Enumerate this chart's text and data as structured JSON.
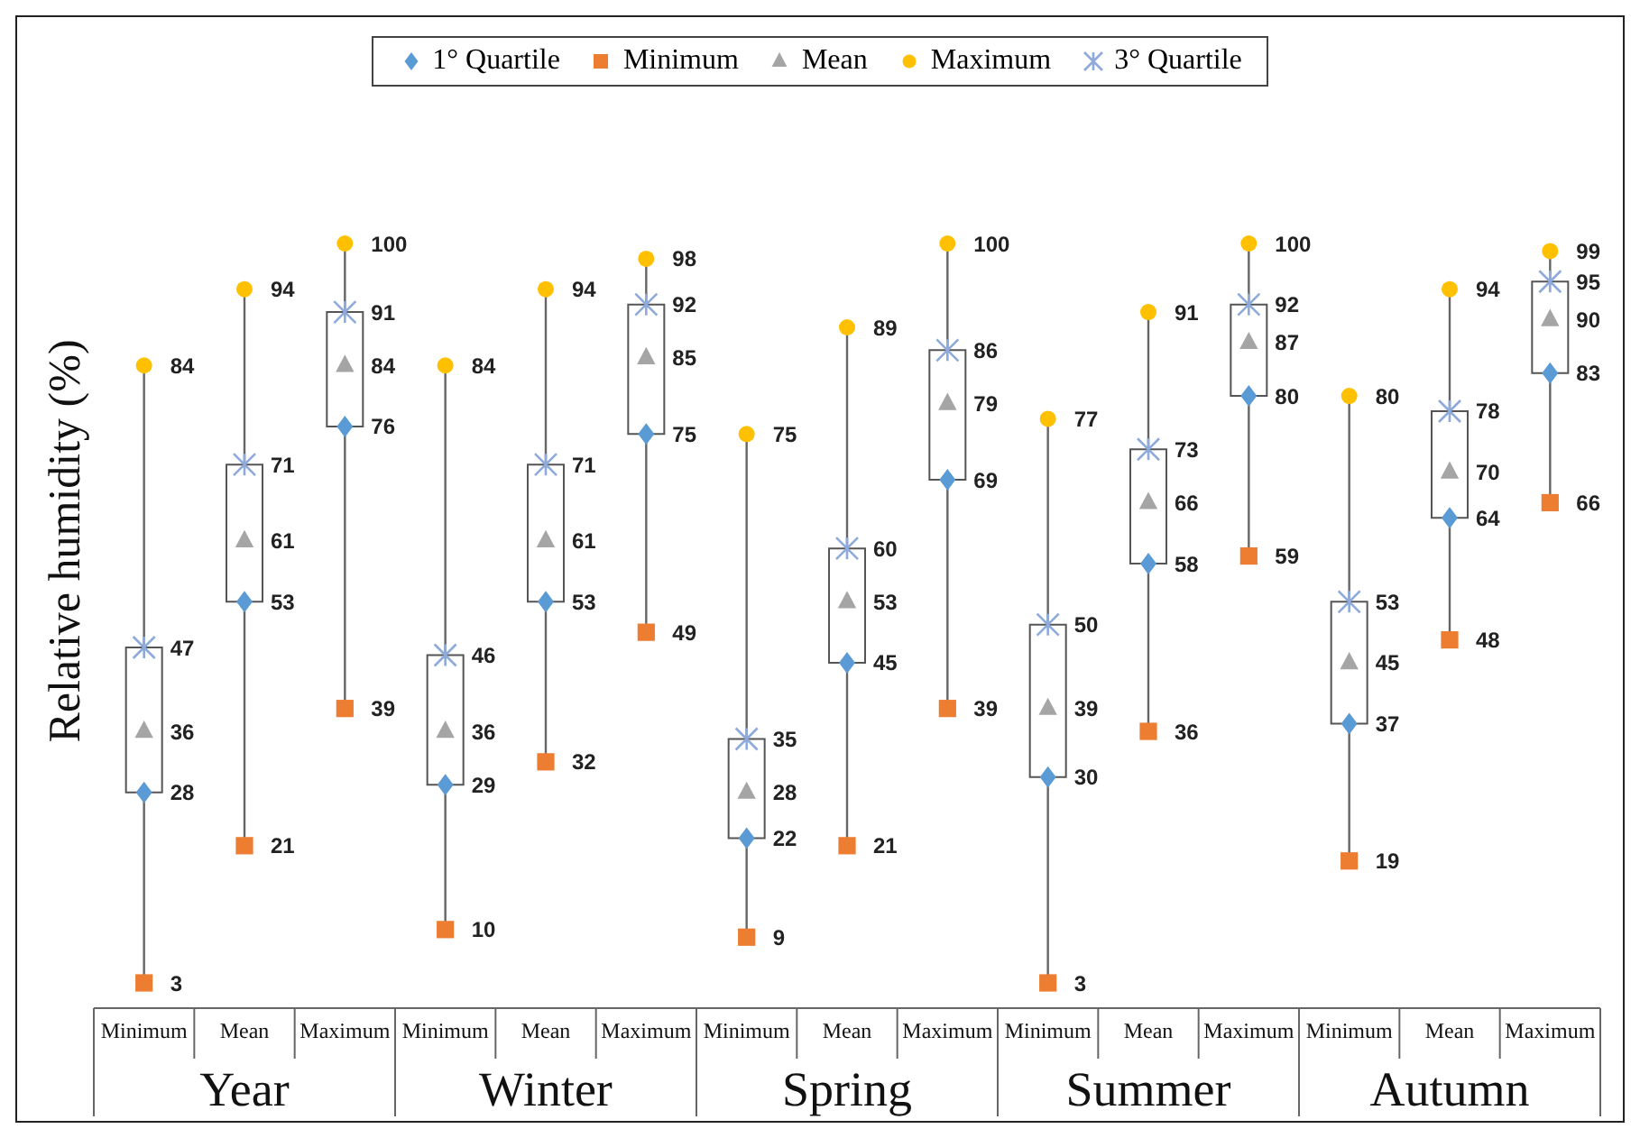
{
  "chart_data": {
    "type": "scatter",
    "ylabel": "Relative humidity (%)",
    "categories": [
      "Minimum",
      "Mean",
      "Maximum",
      "Minimum",
      "Mean",
      "Maximum",
      "Minimum",
      "Mean",
      "Maximum",
      "Minimum",
      "Mean",
      "Maximum",
      "Minimum",
      "Mean",
      "Maximum"
    ],
    "annotations": [
      "Year",
      "Winter",
      "Spring",
      "Summer",
      "Autumn"
    ],
    "series": [
      {
        "name": "1° Quartile",
        "color": "#5b9bd5",
        "marker": "diamond",
        "values": [
          28,
          53,
          76,
          29,
          53,
          75,
          22,
          45,
          69,
          30,
          58,
          80,
          37,
          64,
          83
        ]
      },
      {
        "name": "Minimum",
        "color": "#ed7d31",
        "marker": "square",
        "values": [
          3,
          21,
          39,
          10,
          32,
          49,
          9,
          21,
          39,
          3,
          36,
          59,
          19,
          48,
          66
        ]
      },
      {
        "name": "Mean",
        "color": "#a5a5a5",
        "marker": "triangle",
        "values": [
          36,
          61,
          84,
          36,
          61,
          85,
          28,
          53,
          79,
          39,
          66,
          87,
          45,
          70,
          90
        ]
      },
      {
        "name": "Maximum",
        "color": "#ffc000",
        "marker": "circle",
        "values": [
          84,
          94,
          100,
          84,
          94,
          98,
          75,
          89,
          100,
          77,
          91,
          100,
          80,
          94,
          99
        ]
      },
      {
        "name": "3° Quartile",
        "color": "#8eaadb",
        "marker": "cross",
        "values": [
          47,
          71,
          91,
          46,
          71,
          92,
          35,
          60,
          86,
          50,
          73,
          92,
          53,
          78,
          95
        ]
      }
    ],
    "data_labels": true,
    "legend": "top"
  }
}
